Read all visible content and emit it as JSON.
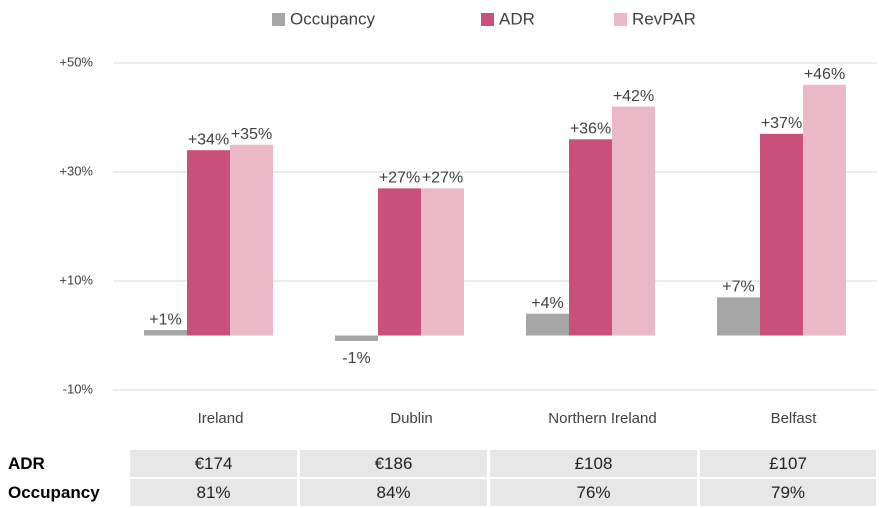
{
  "chart_data": {
    "type": "bar",
    "categories": [
      "Ireland",
      "Dublin",
      "Northern Ireland",
      "Belfast"
    ],
    "series": [
      {
        "name": "Occupancy",
        "color": "#a6a6a6",
        "values": [
          1,
          -1,
          4,
          7
        ],
        "value_labels": [
          "+1%",
          "-1%",
          "+4%",
          "+7%"
        ]
      },
      {
        "name": "ADR",
        "color": "#c9507a",
        "values": [
          34,
          27,
          36,
          37
        ],
        "value_labels": [
          "+34%",
          "+27%",
          "+36%",
          "+37%"
        ]
      },
      {
        "name": "RevPAR",
        "color": "#ebb8c8",
        "values": [
          35,
          27,
          42,
          46
        ],
        "value_labels": [
          "+35%",
          "+27%",
          "+42%",
          "+46%"
        ]
      }
    ],
    "ylim": [
      -10,
      50
    ],
    "yticks": [
      {
        "value": -10,
        "label": "-10%"
      },
      {
        "value": 10,
        "label": "+10%"
      },
      {
        "value": 30,
        "label": "+30%"
      },
      {
        "value": 50,
        "label": "+50%"
      }
    ],
    "grid": true,
    "legend": "top"
  },
  "table": {
    "rows": [
      [
        "ADR",
        "€174",
        "€186",
        "£108",
        "£107"
      ],
      [
        "Occupancy",
        "81%",
        "84%",
        "76%",
        "79%"
      ]
    ]
  }
}
